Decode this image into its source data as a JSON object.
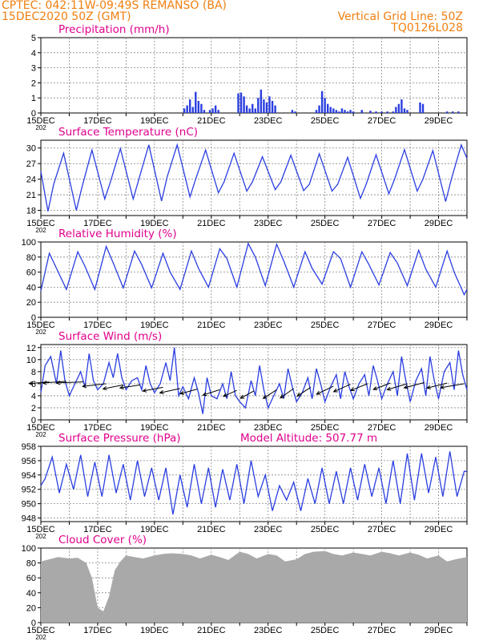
{
  "header": {
    "left_line1": "CPTEC:   042:11W-09:49S   REMANSO (BA)",
    "left_line2": "15DEC2020 50Z (GMT)",
    "right_line1": "Vertical Grid Line: 50Z",
    "right_line2": "TQ0126L028"
  },
  "colors": {
    "header": "#f07f10",
    "title": "#e0008c",
    "line": "#2a3ee0",
    "bar": "#2a3ee0",
    "cloud": "#a9a9a9",
    "grid": "#888888"
  },
  "x_axis": {
    "start_day": 15,
    "end_day": 30,
    "tick_labels": [
      "15DEC",
      "17DEC",
      "19DEC",
      "21DEC",
      "23DEC",
      "25DEC",
      "27DEC",
      "29DEC"
    ],
    "sub_label": "202"
  },
  "chart_data": [
    {
      "id": "precip",
      "type": "bar",
      "title": "Precipitation (mm/h)",
      "ylim": [
        0,
        5
      ],
      "yticks": [
        0,
        1,
        2,
        3,
        4,
        5
      ],
      "x_unit": "day of December 2020",
      "value_unit": "mm/h",
      "x": [
        20.05,
        20.15,
        20.25,
        20.35,
        20.45,
        20.55,
        20.65,
        20.75,
        20.95,
        21.05,
        21.15,
        21.25,
        21.95,
        22.05,
        22.15,
        22.25,
        22.35,
        22.45,
        22.55,
        22.65,
        22.75,
        22.85,
        22.95,
        23.05,
        23.15,
        23.25,
        23.85,
        23.95,
        24.7,
        24.8,
        24.9,
        25.0,
        25.1,
        25.2,
        25.3,
        25.4,
        25.5,
        25.6,
        25.7,
        25.8,
        25.9,
        26.0,
        26.3,
        26.6,
        26.8,
        27.0,
        27.2,
        27.4,
        27.5,
        27.6,
        27.7,
        27.8,
        27.9,
        28.35,
        28.45,
        29.3,
        29.5,
        29.7
      ],
      "values": [
        0.3,
        0.5,
        0.9,
        0.4,
        1.4,
        0.8,
        0.6,
        0.2,
        0.2,
        0.3,
        0.5,
        0.2,
        1.3,
        1.35,
        1.1,
        0.5,
        0.3,
        0.6,
        0.3,
        1.0,
        1.55,
        0.9,
        0.7,
        1.1,
        0.8,
        0.5,
        0.2,
        0.1,
        0.2,
        0.5,
        1.45,
        1.0,
        0.6,
        0.4,
        0.3,
        0.2,
        0.1,
        0.3,
        0.2,
        0.1,
        0.2,
        0.1,
        0.2,
        0.15,
        0.1,
        0.1,
        0.1,
        0.1,
        0.4,
        0.6,
        0.9,
        0.3,
        0.2,
        0.7,
        0.6,
        0.1,
        0.1,
        0.1
      ]
    },
    {
      "id": "temp",
      "type": "line",
      "title": "Surface Temperature (nC)",
      "ylim": [
        17,
        31.5
      ],
      "yticks": [
        18,
        21,
        24,
        27,
        30
      ],
      "x_unit": "day of December 2020",
      "value_unit": "°C",
      "x": [
        15.0,
        15.25,
        15.45,
        15.8,
        16.25,
        16.45,
        16.8,
        17.25,
        17.45,
        17.8,
        18.25,
        18.45,
        18.8,
        19.25,
        19.45,
        19.8,
        20.25,
        20.45,
        20.8,
        21.25,
        21.45,
        21.8,
        22.25,
        22.45,
        22.8,
        23.25,
        23.45,
        23.8,
        24.25,
        24.45,
        24.8,
        25.25,
        25.45,
        25.8,
        26.25,
        26.45,
        26.8,
        27.25,
        27.45,
        27.8,
        28.25,
        28.45,
        28.8,
        29.25,
        29.45,
        29.8,
        30.0
      ],
      "values": [
        25.5,
        17.8,
        23.0,
        29.0,
        18.0,
        22.5,
        29.6,
        20.2,
        23.5,
        29.9,
        20.2,
        24.0,
        30.6,
        19.8,
        24.5,
        30.6,
        20.6,
        24.0,
        29.6,
        21.4,
        23.5,
        29.0,
        21.7,
        23.5,
        28.3,
        22.0,
        23.5,
        28.6,
        21.8,
        23.0,
        28.9,
        21.7,
        23.0,
        28.2,
        20.3,
        23.0,
        28.7,
        21.2,
        24.0,
        29.7,
        21.7,
        24.0,
        29.5,
        19.7,
        24.0,
        30.6,
        28.0
      ]
    },
    {
      "id": "rh",
      "type": "line",
      "title": "Relative Humidity (%)",
      "ylim": [
        0,
        100
      ],
      "yticks": [
        0,
        20,
        40,
        60,
        80,
        100
      ],
      "x_unit": "day of December 2020",
      "value_unit": "%",
      "x": [
        15.0,
        15.3,
        15.55,
        15.9,
        16.3,
        16.55,
        16.9,
        17.3,
        17.55,
        17.9,
        18.3,
        18.55,
        18.9,
        19.3,
        19.55,
        19.9,
        20.3,
        20.55,
        20.9,
        21.3,
        21.55,
        21.9,
        22.3,
        22.55,
        22.9,
        23.3,
        23.55,
        23.9,
        24.3,
        24.55,
        24.9,
        25.3,
        25.55,
        25.9,
        26.3,
        26.55,
        26.9,
        27.3,
        27.55,
        27.9,
        28.3,
        28.55,
        28.9,
        29.3,
        29.55,
        29.9,
        30.0
      ],
      "values": [
        35,
        85,
        65,
        37,
        87,
        68,
        37,
        94,
        72,
        39,
        88,
        70,
        39,
        85,
        60,
        37,
        88,
        65,
        40,
        91,
        78,
        40,
        98,
        80,
        42,
        97,
        75,
        40,
        87,
        65,
        44,
        87,
        78,
        40,
        87,
        70,
        43,
        86,
        72,
        42,
        89,
        64,
        40,
        88,
        60,
        30,
        37
      ]
    },
    {
      "id": "wind",
      "type": "line",
      "title": "Surface Wind (m/s)",
      "ylim": [
        0,
        12.5
      ],
      "yticks": [
        0,
        2,
        4,
        6,
        8,
        10,
        12
      ],
      "x_unit": "day of December 2020",
      "value_unit": "m/s",
      "x": [
        15.0,
        15.15,
        15.35,
        15.55,
        15.7,
        15.85,
        16.0,
        16.2,
        16.4,
        16.55,
        16.7,
        16.85,
        17.0,
        17.2,
        17.4,
        17.55,
        17.7,
        17.85,
        18.0,
        18.2,
        18.4,
        18.55,
        18.7,
        18.85,
        19.0,
        19.2,
        19.4,
        19.55,
        19.7,
        19.85,
        20.0,
        20.2,
        20.4,
        20.55,
        20.7,
        20.85,
        21.0,
        21.2,
        21.4,
        21.55,
        21.7,
        21.85,
        22.0,
        22.2,
        22.4,
        22.55,
        22.7,
        22.85,
        23.0,
        23.2,
        23.4,
        23.55,
        23.7,
        23.85,
        24.0,
        24.2,
        24.4,
        24.55,
        24.7,
        24.85,
        25.0,
        25.2,
        25.4,
        25.55,
        25.7,
        25.85,
        26.0,
        26.2,
        26.4,
        26.55,
        26.7,
        26.85,
        27.0,
        27.2,
        27.4,
        27.55,
        27.7,
        27.85,
        28.0,
        28.2,
        28.4,
        28.55,
        28.7,
        28.85,
        29.0,
        29.2,
        29.4,
        29.55,
        29.7,
        29.85,
        30.0
      ],
      "values": [
        4.5,
        9.0,
        10.5,
        6.0,
        11.5,
        6.5,
        4.0,
        6.0,
        8.0,
        5.5,
        11.0,
        6.5,
        5.0,
        6.0,
        9.5,
        7.0,
        11.0,
        7.0,
        5.0,
        6.5,
        7.0,
        5.0,
        9.0,
        6.0,
        4.5,
        6.0,
        9.5,
        6.5,
        12.0,
        4.0,
        5.5,
        3.5,
        7.0,
        4.5,
        1.0,
        7.0,
        4.0,
        3.5,
        6.0,
        3.5,
        8.0,
        4.0,
        3.0,
        2.0,
        6.5,
        4.0,
        9.0,
        5.0,
        2.0,
        4.0,
        6.0,
        3.5,
        8.5,
        5.5,
        3.0,
        4.5,
        7.0,
        3.5,
        8.5,
        6.0,
        3.0,
        5.5,
        7.5,
        3.5,
        8.0,
        5.5,
        3.5,
        6.0,
        7.5,
        4.0,
        9.0,
        6.5,
        3.5,
        6.0,
        8.0,
        4.0,
        10.5,
        6.5,
        3.0,
        6.5,
        8.5,
        4.0,
        10.5,
        6.5,
        3.5,
        8.0,
        9.5,
        5.0,
        11.5,
        7.5,
        5.0
      ],
      "arrows_x": [
        15.3,
        15.9,
        16.5,
        17.3,
        17.9,
        18.5,
        19.3,
        19.9,
        20.5,
        21.3,
        21.9,
        22.5,
        23.3,
        23.9,
        24.5,
        25.3,
        25.9,
        26.5,
        27.3,
        27.9,
        28.5,
        29.3,
        29.9
      ],
      "arrows_y": [
        6.3,
        6.4,
        6.3,
        6.0,
        5.8,
        5.8,
        5.4,
        5.2,
        5.1,
        5.0,
        4.9,
        4.8,
        5.0,
        5.2,
        5.4,
        5.6,
        5.9,
        6.0,
        6.1,
        6.0,
        6.2,
        6.1,
        6.0
      ],
      "arrows_u": [
        -6,
        -7,
        -8,
        -7,
        -6,
        -6,
        -6,
        -6,
        -5,
        -5,
        -4,
        -4,
        -4,
        -4,
        -4,
        -5,
        -5,
        -5,
        -5,
        -6,
        -6,
        -6,
        -7
      ],
      "arrows_v": [
        0.5,
        0.5,
        0.3,
        0.8,
        1.2,
        0.9,
        1.1,
        1.3,
        1.4,
        1.6,
        1.8,
        2.2,
        2.6,
        2.8,
        2.6,
        2.4,
        2.2,
        2.0,
        1.9,
        1.8,
        1.6,
        1.5,
        1.2
      ]
    },
    {
      "id": "press",
      "type": "line",
      "title": "Surface Pressure (hPa)",
      "subtitle": "Model Altitude: 507.77 m",
      "ylim": [
        947.5,
        958
      ],
      "yticks": [
        948,
        950,
        952,
        954,
        956,
        958
      ],
      "x_unit": "day of December 2020",
      "value_unit": "hPa",
      "x": [
        15.0,
        15.15,
        15.4,
        15.65,
        15.9,
        16.15,
        16.4,
        16.65,
        16.9,
        17.15,
        17.4,
        17.65,
        17.9,
        18.15,
        18.4,
        18.65,
        18.9,
        19.15,
        19.4,
        19.65,
        19.9,
        20.15,
        20.4,
        20.65,
        20.9,
        21.15,
        21.4,
        21.65,
        21.9,
        22.15,
        22.4,
        22.65,
        22.9,
        23.15,
        23.4,
        23.65,
        23.9,
        24.15,
        24.4,
        24.65,
        24.9,
        25.15,
        25.4,
        25.65,
        25.9,
        26.15,
        26.4,
        26.65,
        26.9,
        27.15,
        27.4,
        27.65,
        27.9,
        28.15,
        28.4,
        28.65,
        28.9,
        29.15,
        29.4,
        29.65,
        29.9,
        30.0
      ],
      "values": [
        952.5,
        953.5,
        956.5,
        951.5,
        955.5,
        952.0,
        956.8,
        951.0,
        955.8,
        951.0,
        956.8,
        951.5,
        955.5,
        950.5,
        956.0,
        951.0,
        955.0,
        950.5,
        955.0,
        948.5,
        954.0,
        949.5,
        955.5,
        950.0,
        955.0,
        949.5,
        954.8,
        950.5,
        955.5,
        950.0,
        956.0,
        951.0,
        954.0,
        949.0,
        952.5,
        950.5,
        953.0,
        949.0,
        953.5,
        950.0,
        955.0,
        950.0,
        954.5,
        950.0,
        955.0,
        950.5,
        955.5,
        951.0,
        955.0,
        950.0,
        956.0,
        950.0,
        957.0,
        950.5,
        957.0,
        951.5,
        956.5,
        951.0,
        957.3,
        951.0,
        954.5,
        954.5
      ]
    },
    {
      "id": "cloud",
      "type": "area",
      "title": "Cloud Cover (%)",
      "ylim": [
        0,
        100
      ],
      "yticks": [
        0,
        20,
        40,
        60,
        80,
        100
      ],
      "x_unit": "day of December 2020",
      "value_unit": "%",
      "x": [
        15.0,
        15.3,
        15.6,
        16.0,
        16.3,
        16.6,
        16.8,
        17.0,
        17.2,
        17.4,
        17.6,
        17.8,
        18.0,
        18.3,
        18.6,
        19.0,
        19.3,
        19.6,
        20.0,
        20.3,
        20.6,
        21.0,
        21.3,
        21.6,
        22.0,
        22.3,
        22.6,
        23.0,
        23.3,
        23.6,
        24.0,
        24.3,
        24.6,
        25.0,
        25.3,
        25.6,
        26.0,
        26.3,
        26.6,
        27.0,
        27.3,
        27.6,
        28.0,
        28.3,
        28.6,
        29.0,
        29.3,
        29.6,
        30.0
      ],
      "values": [
        82,
        85,
        88,
        86,
        87,
        80,
        60,
        20,
        15,
        35,
        70,
        82,
        90,
        88,
        86,
        90,
        92,
        93,
        92,
        90,
        86,
        91,
        88,
        84,
        95,
        92,
        86,
        92,
        90,
        82,
        85,
        92,
        95,
        96,
        92,
        90,
        94,
        92,
        90,
        95,
        93,
        90,
        94,
        91,
        86,
        90,
        82,
        85,
        88
      ]
    }
  ]
}
